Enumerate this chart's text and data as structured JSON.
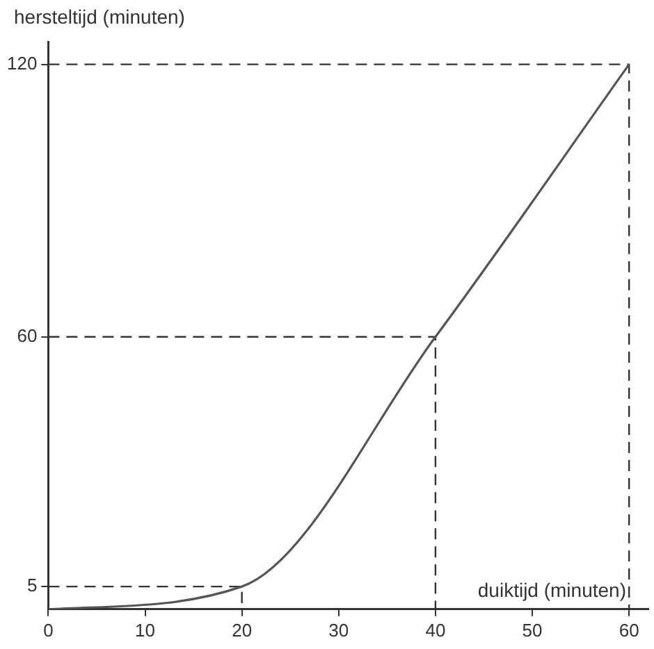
{
  "chart_data": {
    "type": "line",
    "xlabel": "duiktijd (minuten)",
    "ylabel": "hersteltijd (minuten)",
    "x": [
      0,
      20,
      40,
      60
    ],
    "series": [
      {
        "color": "#555555",
        "values": [
          0,
          5,
          60,
          120
        ]
      },
      {
        "color": "#333333",
        "line_style": "dashed",
        "x": [
          0,
          20,
          20
        ],
        "values": [
          5,
          5,
          0
        ]
      },
      {
        "color": "#333333",
        "line_style": "dashed",
        "x": [
          0,
          40,
          40
        ],
        "values": [
          60,
          60,
          0
        ]
      },
      {
        "color": "#333333",
        "line_style": "dashed",
        "x": [
          0,
          60,
          60
        ],
        "values": [
          120,
          120,
          0
        ]
      }
    ],
    "xlim": [
      0,
      62
    ],
    "ylim": [
      0,
      125
    ],
    "xticks": [
      0,
      10,
      20,
      30,
      40,
      50,
      60
    ],
    "yticks": [
      5,
      60,
      120
    ],
    "grid": false,
    "legend": false,
    "marker": "none",
    "line_style": "solid"
  }
}
